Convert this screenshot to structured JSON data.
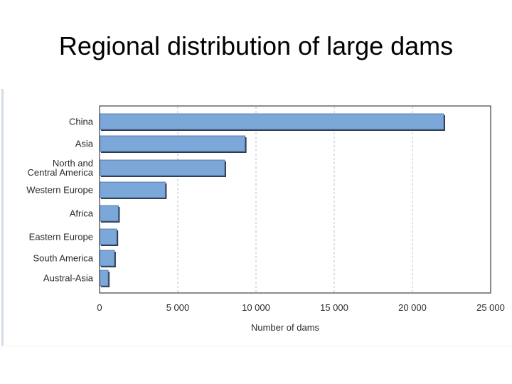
{
  "page": {
    "title": "Regional distribution of large dams"
  },
  "colors": {
    "bar_fill": "#7ba7d9",
    "bar_shadow": "#2f3a4a",
    "grid": "#a9c4de",
    "axis": "#1a1a1a"
  },
  "chart_data": {
    "type": "bar",
    "orientation": "horizontal",
    "title": "",
    "categories": [
      "China",
      "Asia",
      "North and Central America",
      "Western Europe",
      "Africa",
      "Eastern Europe",
      "South America",
      "Austral-Asia"
    ],
    "category_lines": [
      [
        "China"
      ],
      [
        "Asia"
      ],
      [
        "North and",
        "Central America"
      ],
      [
        "Western Europe"
      ],
      [
        "Africa"
      ],
      [
        "Eastern Europe"
      ],
      [
        "South America"
      ],
      [
        "Austral-Asia"
      ]
    ],
    "values": [
      22000,
      9300,
      8000,
      4200,
      1200,
      1100,
      950,
      550
    ],
    "xlabel": "Number of dams",
    "ylabel": "",
    "xlim": [
      0,
      25000
    ],
    "xticks": [
      0,
      5000,
      10000,
      15000,
      20000,
      25000
    ],
    "xtick_labels": [
      "0",
      "5 000",
      "10 000",
      "15 000",
      "20 000",
      "25 000"
    ],
    "grid": true,
    "grid_style": "dashed vertical",
    "legend": "none"
  }
}
